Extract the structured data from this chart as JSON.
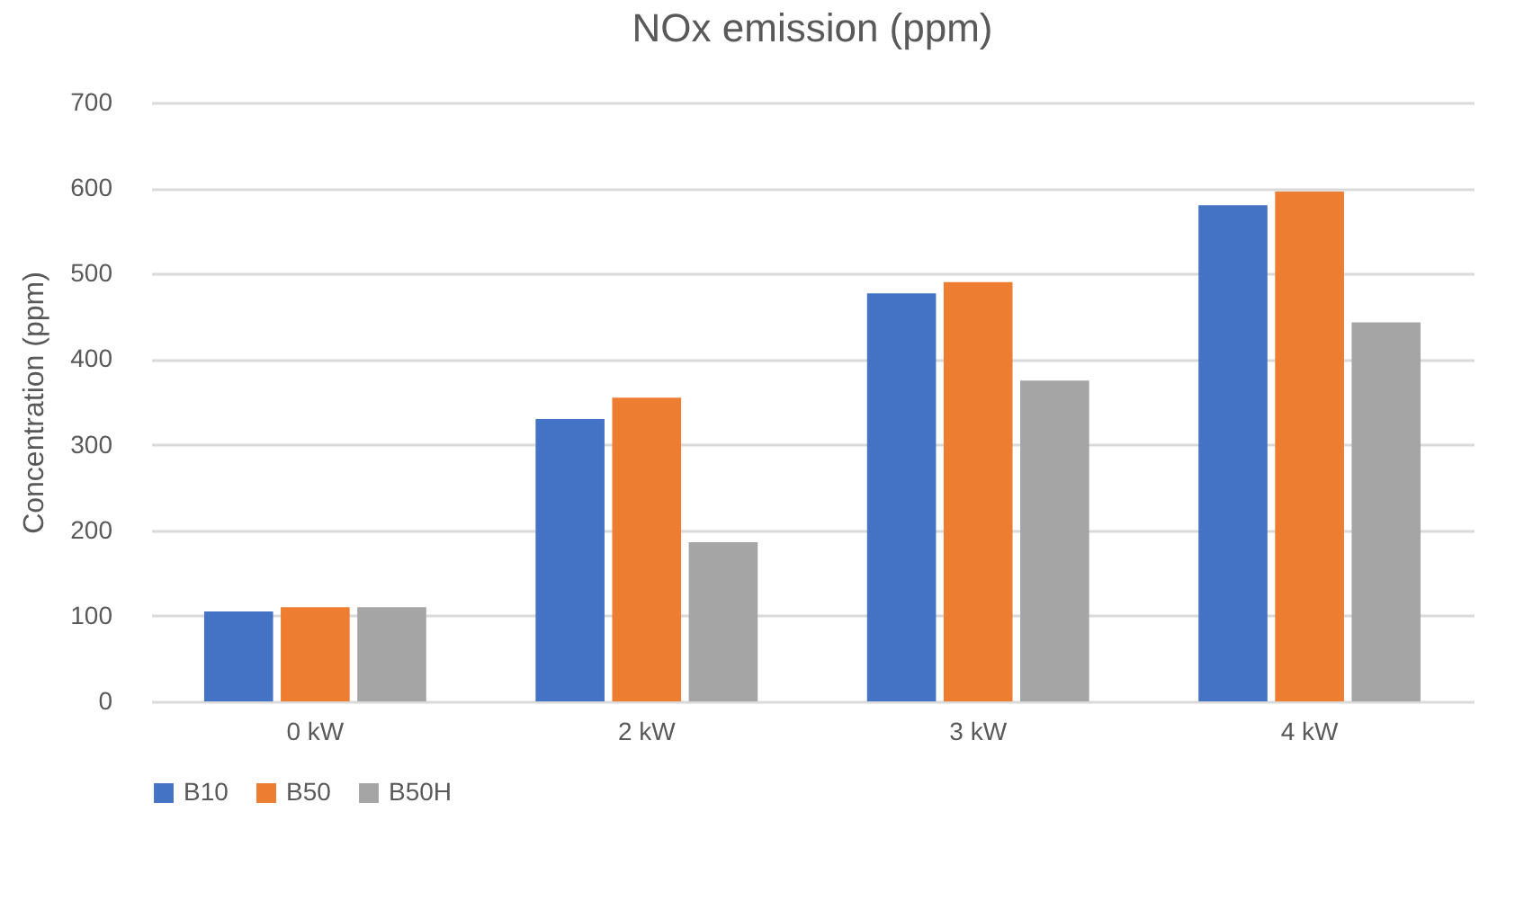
{
  "chart_data": {
    "type": "bar",
    "title": "NOx emission  (ppm)",
    "ylabel": "Concentration (ppm)",
    "categories": [
      "0 kW",
      "2 kW",
      "3 kW",
      "4 kW"
    ],
    "series": [
      {
        "name": "B10",
        "color": "#4472c4",
        "values": [
          105,
          330,
          477,
          580
        ]
      },
      {
        "name": "B50",
        "color": "#ed7d31",
        "values": [
          110,
          355,
          490,
          596
        ]
      },
      {
        "name": "B50H",
        "color": "#a5a5a5",
        "values": [
          110,
          186,
          375,
          443
        ]
      }
    ],
    "ylim": [
      0,
      700
    ],
    "yticks": [
      0,
      100,
      200,
      300,
      400,
      500,
      600,
      700
    ],
    "grid": "y",
    "legend": "bottom"
  }
}
